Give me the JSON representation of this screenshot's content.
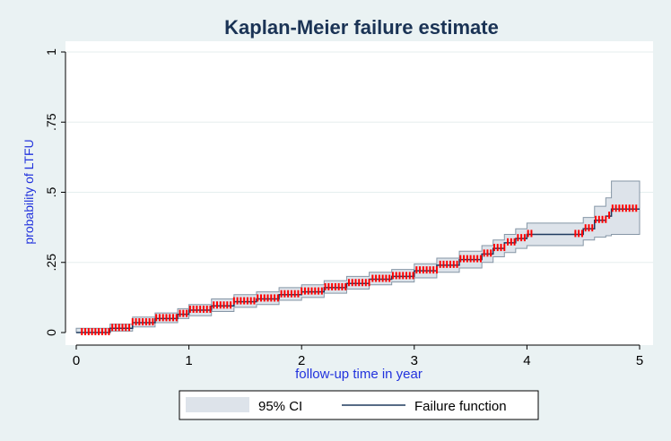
{
  "chart_data": {
    "type": "line",
    "title": "Kaplan-Meier failure estimate",
    "xlabel": "follow-up time in year",
    "ylabel": "probability of LTFU",
    "xlim": [
      0,
      5
    ],
    "ylim": [
      0,
      1
    ],
    "x_ticks": [
      "0",
      "1",
      "2",
      "3",
      "4",
      "5"
    ],
    "y_ticks": [
      ".25",
      ".5",
      ".75",
      "1"
    ],
    "y_ticks_all": [
      "0",
      ".25",
      ".5",
      ".75",
      "1"
    ],
    "grid": true,
    "legend_position": "bottom",
    "legend": {
      "ci_label": "95% CI",
      "line_label": "Failure function"
    },
    "colors": {
      "background": "#eaf2f3",
      "plot_area": "#ffffff",
      "ci_fill": "#dde3ea",
      "ci_edge": "#8596a6",
      "line": "#1e3a5f",
      "censor_marks": "#ff0000",
      "title": "#1a3355",
      "axis_label": "#2233dd"
    },
    "series": [
      {
        "name": "Failure function",
        "x": [
          0.0,
          0.3,
          0.5,
          0.7,
          0.9,
          1.0,
          1.2,
          1.4,
          1.6,
          1.8,
          2.0,
          2.2,
          2.4,
          2.6,
          2.8,
          3.0,
          3.2,
          3.4,
          3.6,
          3.7,
          3.8,
          3.9,
          4.0,
          4.4,
          4.5,
          4.6,
          4.7,
          4.75,
          5.0
        ],
        "y": [
          0.0,
          0.015,
          0.035,
          0.05,
          0.065,
          0.08,
          0.095,
          0.11,
          0.12,
          0.135,
          0.145,
          0.16,
          0.175,
          0.19,
          0.2,
          0.22,
          0.24,
          0.26,
          0.28,
          0.3,
          0.32,
          0.335,
          0.35,
          0.35,
          0.37,
          0.4,
          0.415,
          0.44,
          0.44
        ]
      }
    ],
    "ci": {
      "name": "95% CI",
      "x": [
        0.0,
        0.3,
        0.5,
        0.7,
        0.9,
        1.0,
        1.2,
        1.4,
        1.6,
        1.8,
        2.0,
        2.2,
        2.4,
        2.6,
        2.8,
        3.0,
        3.2,
        3.4,
        3.6,
        3.7,
        3.8,
        3.9,
        4.0,
        4.4,
        4.5,
        4.6,
        4.7,
        4.75,
        5.0
      ],
      "lower": [
        0.0,
        0.005,
        0.02,
        0.035,
        0.05,
        0.06,
        0.075,
        0.09,
        0.1,
        0.115,
        0.125,
        0.14,
        0.155,
        0.17,
        0.18,
        0.195,
        0.215,
        0.23,
        0.25,
        0.27,
        0.285,
        0.3,
        0.31,
        0.31,
        0.33,
        0.34,
        0.345,
        0.35,
        0.35
      ],
      "upper": [
        0.015,
        0.03,
        0.055,
        0.07,
        0.085,
        0.1,
        0.12,
        0.135,
        0.145,
        0.16,
        0.17,
        0.185,
        0.2,
        0.215,
        0.225,
        0.245,
        0.265,
        0.29,
        0.31,
        0.33,
        0.35,
        0.37,
        0.39,
        0.39,
        0.41,
        0.45,
        0.48,
        0.54,
        0.54
      ]
    }
  }
}
